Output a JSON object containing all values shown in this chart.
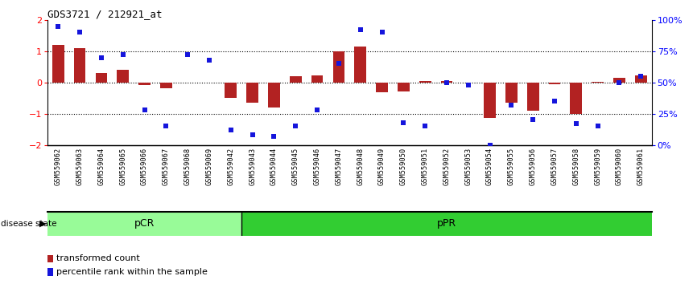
{
  "title": "GDS3721 / 212921_at",
  "samples": [
    "GSM559062",
    "GSM559063",
    "GSM559064",
    "GSM559065",
    "GSM559066",
    "GSM559067",
    "GSM559068",
    "GSM559069",
    "GSM559042",
    "GSM559043",
    "GSM559044",
    "GSM559045",
    "GSM559046",
    "GSM559047",
    "GSM559048",
    "GSM559049",
    "GSM559050",
    "GSM559051",
    "GSM559052",
    "GSM559053",
    "GSM559054",
    "GSM559055",
    "GSM559056",
    "GSM559057",
    "GSM559058",
    "GSM559059",
    "GSM559060",
    "GSM559061"
  ],
  "bar_values": [
    1.2,
    1.1,
    0.3,
    0.4,
    -0.08,
    -0.2,
    0.0,
    0.0,
    -0.5,
    -0.65,
    -0.8,
    0.2,
    0.22,
    1.0,
    1.15,
    -0.32,
    -0.28,
    0.05,
    0.05,
    0.0,
    -1.15,
    -0.65,
    -0.9,
    -0.05,
    -1.0,
    0.02,
    0.15,
    0.22
  ],
  "percentile_values": [
    95,
    90,
    70,
    72,
    28,
    15,
    72,
    68,
    12,
    8,
    7,
    15,
    28,
    65,
    92,
    90,
    18,
    15,
    50,
    48,
    0,
    32,
    20,
    35,
    17,
    15,
    50,
    55
  ],
  "pCR_count": 9,
  "pPR_count": 19,
  "ylim_left": [
    -2,
    2
  ],
  "ylim_right": [
    0,
    100
  ],
  "yticks_left": [
    -2,
    -1,
    0,
    1,
    2
  ],
  "yticks_right": [
    0,
    25,
    50,
    75,
    100
  ],
  "ytick_labels_right": [
    "0%",
    "25%",
    "50%",
    "75%",
    "100%"
  ],
  "bar_color": "#B22222",
  "scatter_color": "#1515DC",
  "pCR_color": "#98FB98",
  "pPR_color": "#32CD32",
  "legend_label_red": "transformed count",
  "legend_label_blue": "percentile rank within the sample",
  "disease_state_label": "disease state",
  "xtick_bg_color": "#C8C8C8"
}
